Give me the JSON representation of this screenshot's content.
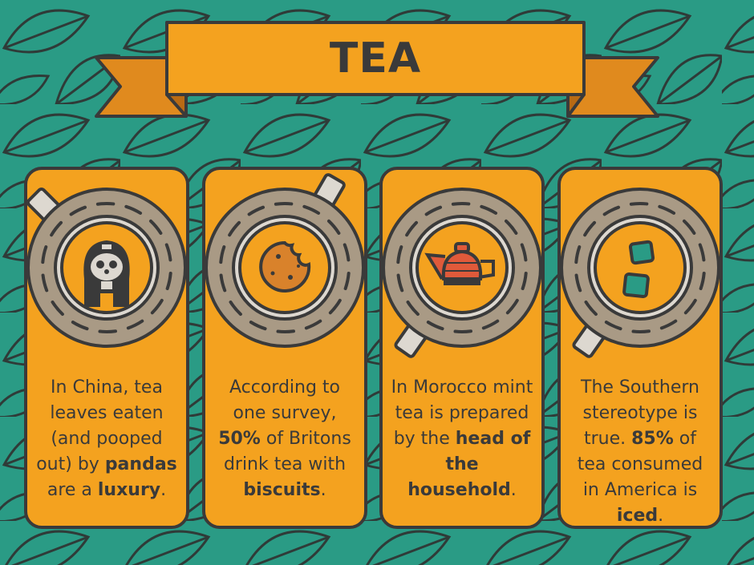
{
  "title": "TEA",
  "colors": {
    "background": "#2a9b85",
    "card": "#f4a21f",
    "outline": "#3a3a3a",
    "cup": "#a99a85",
    "banner": "#f4a21f",
    "banner_tail": "#e08a1e",
    "teapot": "#e05a3a"
  },
  "cards": [
    {
      "icon": "panda-icon",
      "segments": [
        {
          "t": "In China, tea leaves eaten (and pooped out) by "
        },
        {
          "t": "pandas",
          "b": true
        },
        {
          "t": " are a "
        },
        {
          "t": "luxury",
          "b": true
        },
        {
          "t": "."
        }
      ]
    },
    {
      "icon": "biscuit-icon",
      "segments": [
        {
          "t": "According to one survey, "
        },
        {
          "t": "50%",
          "b": true
        },
        {
          "t": " of Britons drink tea with "
        },
        {
          "t": "biscuits",
          "b": true
        },
        {
          "t": "."
        }
      ]
    },
    {
      "icon": "teapot-icon",
      "segments": [
        {
          "t": "In Morocco mint tea is prepared by the "
        },
        {
          "t": "head of the household",
          "b": true
        },
        {
          "t": "."
        }
      ]
    },
    {
      "icon": "ice-cubes-icon",
      "segments": [
        {
          "t": "The Southern stereotype is true. "
        },
        {
          "t": "85%",
          "b": true
        },
        {
          "t": " of tea consumed in America is "
        },
        {
          "t": "iced",
          "b": true
        },
        {
          "t": "."
        }
      ]
    }
  ]
}
